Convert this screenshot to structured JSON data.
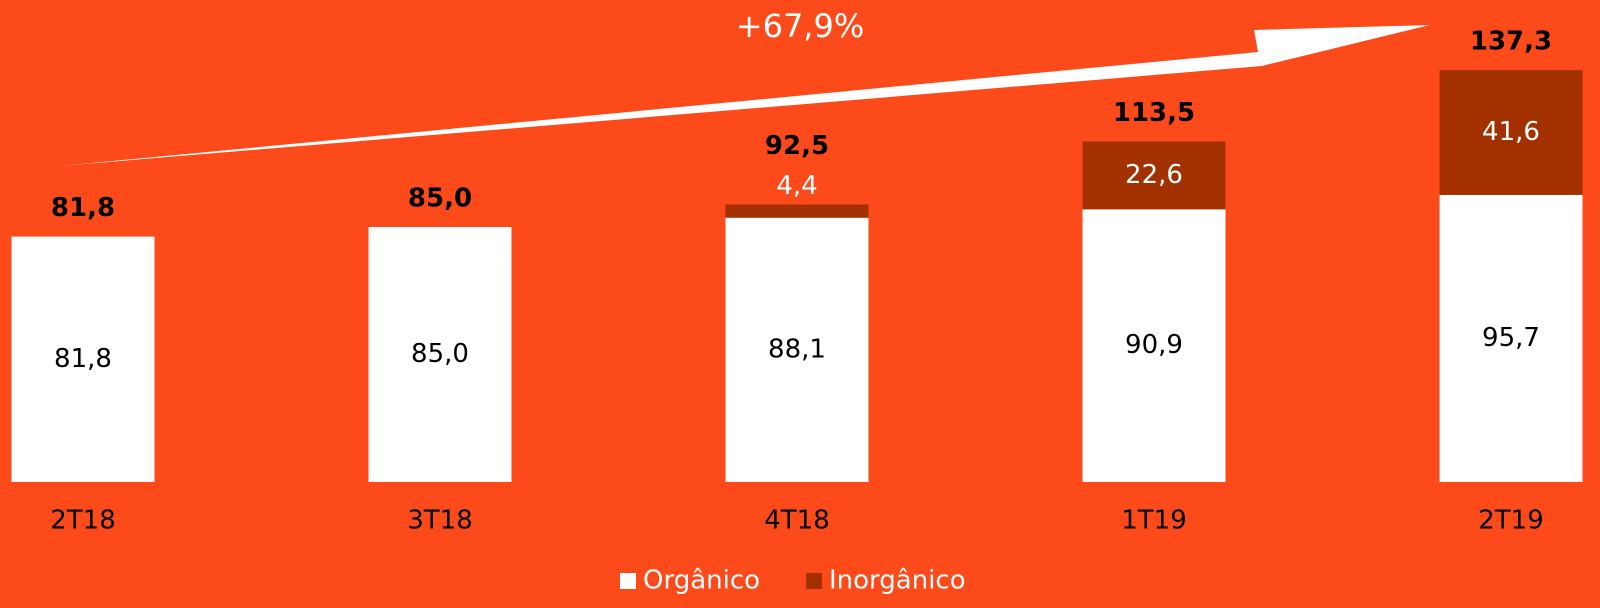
{
  "chart_data": {
    "type": "stacked_bar",
    "annotation": "+67,9%",
    "categories": [
      "2T18",
      "3T18",
      "4T18",
      "1T19",
      "2T19"
    ],
    "series": [
      {
        "name": "Orgânico",
        "color": "#ffffff",
        "values": [
          81.8,
          85.0,
          88.1,
          90.9,
          95.7
        ],
        "value_labels": [
          "81,8",
          "85,0",
          "88,1",
          "90,9",
          "95,7"
        ]
      },
      {
        "name": "Inorgânico",
        "color": "#a33100",
        "values": [
          null,
          null,
          4.4,
          22.6,
          41.6
        ],
        "value_labels": [
          null,
          null,
          "4,4",
          "22,6",
          "41,6"
        ]
      }
    ],
    "totals": [
      81.8,
      85.0,
      92.5,
      113.5,
      137.3
    ],
    "totals_labels": [
      "81,8",
      "85,0",
      "92,5",
      "113,5",
      "137,3"
    ],
    "legend": "bottom"
  }
}
